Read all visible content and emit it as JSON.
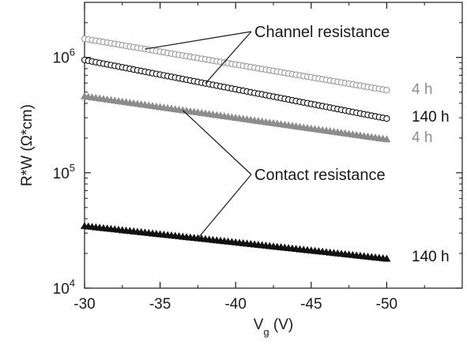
{
  "chart_data": {
    "type": "scatter",
    "title": "",
    "ylabel": "R*W (Ω*cm)",
    "xlabel": {
      "main": "V",
      "sub": "g",
      "unit": " (V)"
    },
    "xlim": [
      -30,
      -55
    ],
    "ylim": [
      10000,
      3000000
    ],
    "yscale": "log",
    "x_ticks": [
      -30,
      -35,
      -40,
      -45,
      -50
    ],
    "x_tick_labels": [
      "-30",
      "-35",
      "-40",
      "-45",
      "-50"
    ],
    "y_ticks": [
      10000,
      100000,
      1000000
    ],
    "y_tick_labels": [
      {
        "base": "10",
        "exp": "4"
      },
      {
        "base": "10",
        "exp": "5"
      },
      {
        "base": "10",
        "exp": "6"
      }
    ],
    "grid": false,
    "x_range_data": [
      -30,
      -50
    ],
    "series": [
      {
        "label": "4 h",
        "marker": "circle-open",
        "color": "#9a9a9a",
        "y_start": 1450000,
        "y_end": 520000
      },
      {
        "label": "140 h",
        "marker": "circle-open",
        "color": "#111111",
        "y_start": 950000,
        "y_end": 295000
      },
      {
        "label": "4 h",
        "marker": "triangle-filled",
        "color": "#8c8c8c",
        "y_start": 460000,
        "y_end": 195000
      },
      {
        "label": "140 h",
        "marker": "triangle-filled",
        "color": "#111111",
        "y_start": 34500,
        "y_end": 18000
      }
    ],
    "annotations": [
      {
        "text": "Channel resistance",
        "targets": [
          {
            "series": 0,
            "x": -34
          },
          {
            "series": 1,
            "x": -38
          }
        ]
      },
      {
        "text": "Contact resistance",
        "targets": [
          {
            "series": 2,
            "x": -36.5
          },
          {
            "series": 3,
            "x": -37.5
          }
        ]
      }
    ]
  }
}
